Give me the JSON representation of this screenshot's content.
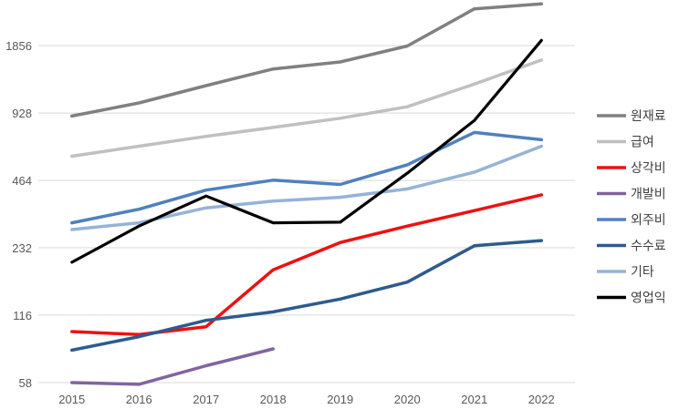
{
  "chart_data": {
    "type": "line",
    "title": "",
    "xlabel": "",
    "ylabel": "",
    "y_scale": "log2",
    "ylim": [
      58,
      2968
    ],
    "yticks": [
      58,
      116,
      232,
      464,
      928,
      1856
    ],
    "grid": true,
    "legend_position": "right",
    "categories": [
      "2015",
      "2016",
      "2017",
      "2018",
      "2019",
      "2020",
      "2021",
      "2022"
    ],
    "series": [
      {
        "name": "원재료",
        "color": "#808080",
        "values": [
          900,
          1030,
          1230,
          1460,
          1570,
          1850,
          2710,
          2850
        ]
      },
      {
        "name": "급여",
        "color": "#c0c0c0",
        "values": [
          595,
          660,
          730,
          800,
          880,
          990,
          1250,
          1600
        ]
      },
      {
        "name": "상각비",
        "color": "#ee1111",
        "values": [
          98,
          95,
          103,
          185,
          245,
          290,
          340,
          400
        ]
      },
      {
        "name": "개발비",
        "color": "#8064a2",
        "values": [
          58,
          57,
          69,
          82,
          null,
          null,
          null,
          null
        ]
      },
      {
        "name": "외주비",
        "color": "#4f81bd",
        "values": [
          300,
          345,
          420,
          465,
          445,
          545,
          760,
          705
        ]
      },
      {
        "name": "수수료",
        "color": "#2e5b8e",
        "values": [
          81,
          93,
          110,
          120,
          137,
          163,
          237,
          250
        ]
      },
      {
        "name": "기타",
        "color": "#95b3d7",
        "values": [
          280,
          300,
          350,
          375,
          390,
          425,
          505,
          660
        ]
      },
      {
        "name": "영업익",
        "color": "#000000",
        "values": [
          200,
          290,
          395,
          300,
          302,
          500,
          860,
          1960
        ]
      }
    ]
  }
}
